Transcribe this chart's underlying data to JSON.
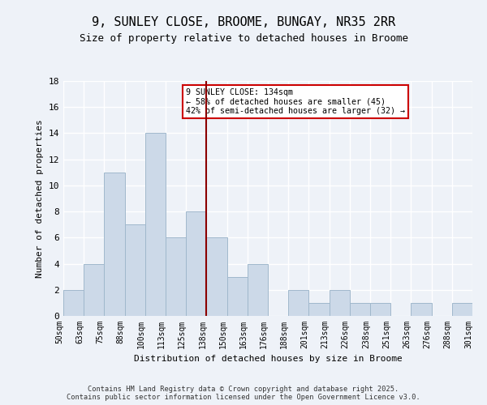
{
  "title": "9, SUNLEY CLOSE, BROOME, BUNGAY, NR35 2RR",
  "subtitle": "Size of property relative to detached houses in Broome",
  "xlabel": "Distribution of detached houses by size in Broome",
  "ylabel": "Number of detached properties",
  "bar_labels": [
    "50sqm",
    "63sqm",
    "75sqm",
    "88sqm",
    "100sqm",
    "113sqm",
    "125sqm",
    "138sqm",
    "150sqm",
    "163sqm",
    "176sqm",
    "188sqm",
    "201sqm",
    "213sqm",
    "226sqm",
    "238sqm",
    "251sqm",
    "263sqm",
    "276sqm",
    "288sqm",
    "301sqm"
  ],
  "bar_values": [
    2,
    4,
    11,
    7,
    14,
    6,
    8,
    6,
    3,
    4,
    0,
    2,
    1,
    2,
    1,
    1,
    0,
    1,
    0,
    1
  ],
  "bar_color": "#ccd9e8",
  "bar_edge_color": "#a0b8cc",
  "vline_x": 6.5,
  "vline_color": "#8b0000",
  "annotation_text": "9 SUNLEY CLOSE: 134sqm\n← 58% of detached houses are smaller (45)\n42% of semi-detached houses are larger (32) →",
  "annotation_box_color": "#ffffff",
  "annotation_box_edge": "#cc0000",
  "ylim": [
    0,
    18
  ],
  "yticks": [
    0,
    2,
    4,
    6,
    8,
    10,
    12,
    14,
    16,
    18
  ],
  "footer": "Contains HM Land Registry data © Crown copyright and database right 2025.\nContains public sector information licensed under the Open Government Licence v3.0.",
  "bg_color": "#eef2f8",
  "plot_bg_color": "#eef2f8",
  "grid_color": "#ffffff"
}
